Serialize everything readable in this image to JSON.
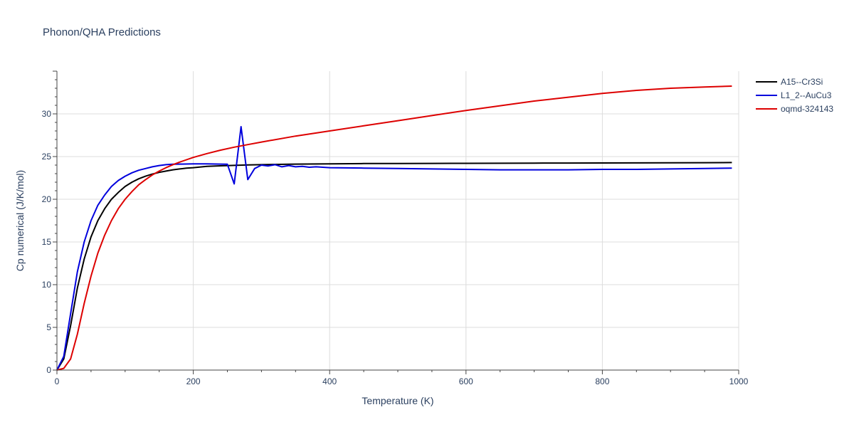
{
  "chart_data": {
    "type": "line",
    "title": "Phonon/QHA Predictions",
    "xlabel": "Temperature (K)",
    "ylabel": "Cp numerical (J/K/mol)",
    "xlim": [
      0,
      1000
    ],
    "ylim": [
      0,
      35
    ],
    "x_ticks": [
      0,
      200,
      400,
      600,
      800,
      1000
    ],
    "y_ticks": [
      0,
      5,
      10,
      15,
      20,
      25,
      30
    ],
    "grid": true,
    "legend_position": "top-right",
    "series": [
      {
        "name": "A15--Cr3Si",
        "color": "#000000",
        "x": [
          0,
          10,
          20,
          30,
          40,
          50,
          60,
          70,
          80,
          90,
          100,
          110,
          120,
          130,
          140,
          150,
          160,
          170,
          180,
          190,
          200,
          220,
          240,
          260,
          280,
          300,
          350,
          400,
          450,
          500,
          550,
          600,
          650,
          700,
          750,
          800,
          850,
          900,
          950,
          990
        ],
        "y": [
          0,
          1.3,
          5.2,
          9.6,
          13.0,
          15.6,
          17.5,
          18.9,
          20.0,
          20.8,
          21.5,
          22.0,
          22.4,
          22.7,
          22.95,
          23.15,
          23.3,
          23.45,
          23.55,
          23.65,
          23.7,
          23.85,
          23.92,
          23.97,
          24.02,
          24.05,
          24.12,
          24.15,
          24.18,
          24.19,
          24.2,
          24.21,
          24.22,
          24.23,
          24.24,
          24.25,
          24.26,
          24.27,
          24.28,
          24.3
        ]
      },
      {
        "name": "L1_2--AuCu3",
        "color": "#0000dd",
        "x": [
          0,
          10,
          20,
          30,
          40,
          50,
          60,
          70,
          80,
          90,
          100,
          110,
          120,
          130,
          140,
          150,
          160,
          170,
          180,
          200,
          220,
          240,
          250,
          260,
          270,
          280,
          290,
          300,
          310,
          320,
          330,
          340,
          350,
          360,
          370,
          380,
          400,
          450,
          500,
          550,
          600,
          650,
          700,
          750,
          800,
          850,
          900,
          950,
          990
        ],
        "y": [
          0,
          1.6,
          6.6,
          11.5,
          15.0,
          17.5,
          19.3,
          20.5,
          21.5,
          22.2,
          22.7,
          23.1,
          23.4,
          23.6,
          23.8,
          23.95,
          24.05,
          24.1,
          24.12,
          24.15,
          24.15,
          24.12,
          24.1,
          21.8,
          28.5,
          22.3,
          23.6,
          24.0,
          23.9,
          24.05,
          23.8,
          23.95,
          23.8,
          23.85,
          23.75,
          23.8,
          23.7,
          23.65,
          23.6,
          23.55,
          23.5,
          23.45,
          23.45,
          23.45,
          23.5,
          23.5,
          23.55,
          23.6,
          23.65
        ]
      },
      {
        "name": "oqmd-324143",
        "color": "#dd0000",
        "x": [
          0,
          10,
          20,
          30,
          40,
          50,
          60,
          70,
          80,
          90,
          100,
          110,
          120,
          130,
          140,
          150,
          160,
          170,
          180,
          200,
          220,
          240,
          260,
          280,
          300,
          350,
          400,
          450,
          500,
          550,
          600,
          650,
          700,
          750,
          800,
          850,
          900,
          950,
          990
        ],
        "y": [
          0,
          0.2,
          1.3,
          4.2,
          7.8,
          11.0,
          13.7,
          15.8,
          17.5,
          18.9,
          20.0,
          20.9,
          21.7,
          22.3,
          22.85,
          23.3,
          23.7,
          24.05,
          24.35,
          24.9,
          25.35,
          25.75,
          26.1,
          26.4,
          26.7,
          27.4,
          28.0,
          28.6,
          29.2,
          29.8,
          30.4,
          30.95,
          31.5,
          31.95,
          32.4,
          32.75,
          33.0,
          33.15,
          33.25
        ]
      }
    ]
  }
}
